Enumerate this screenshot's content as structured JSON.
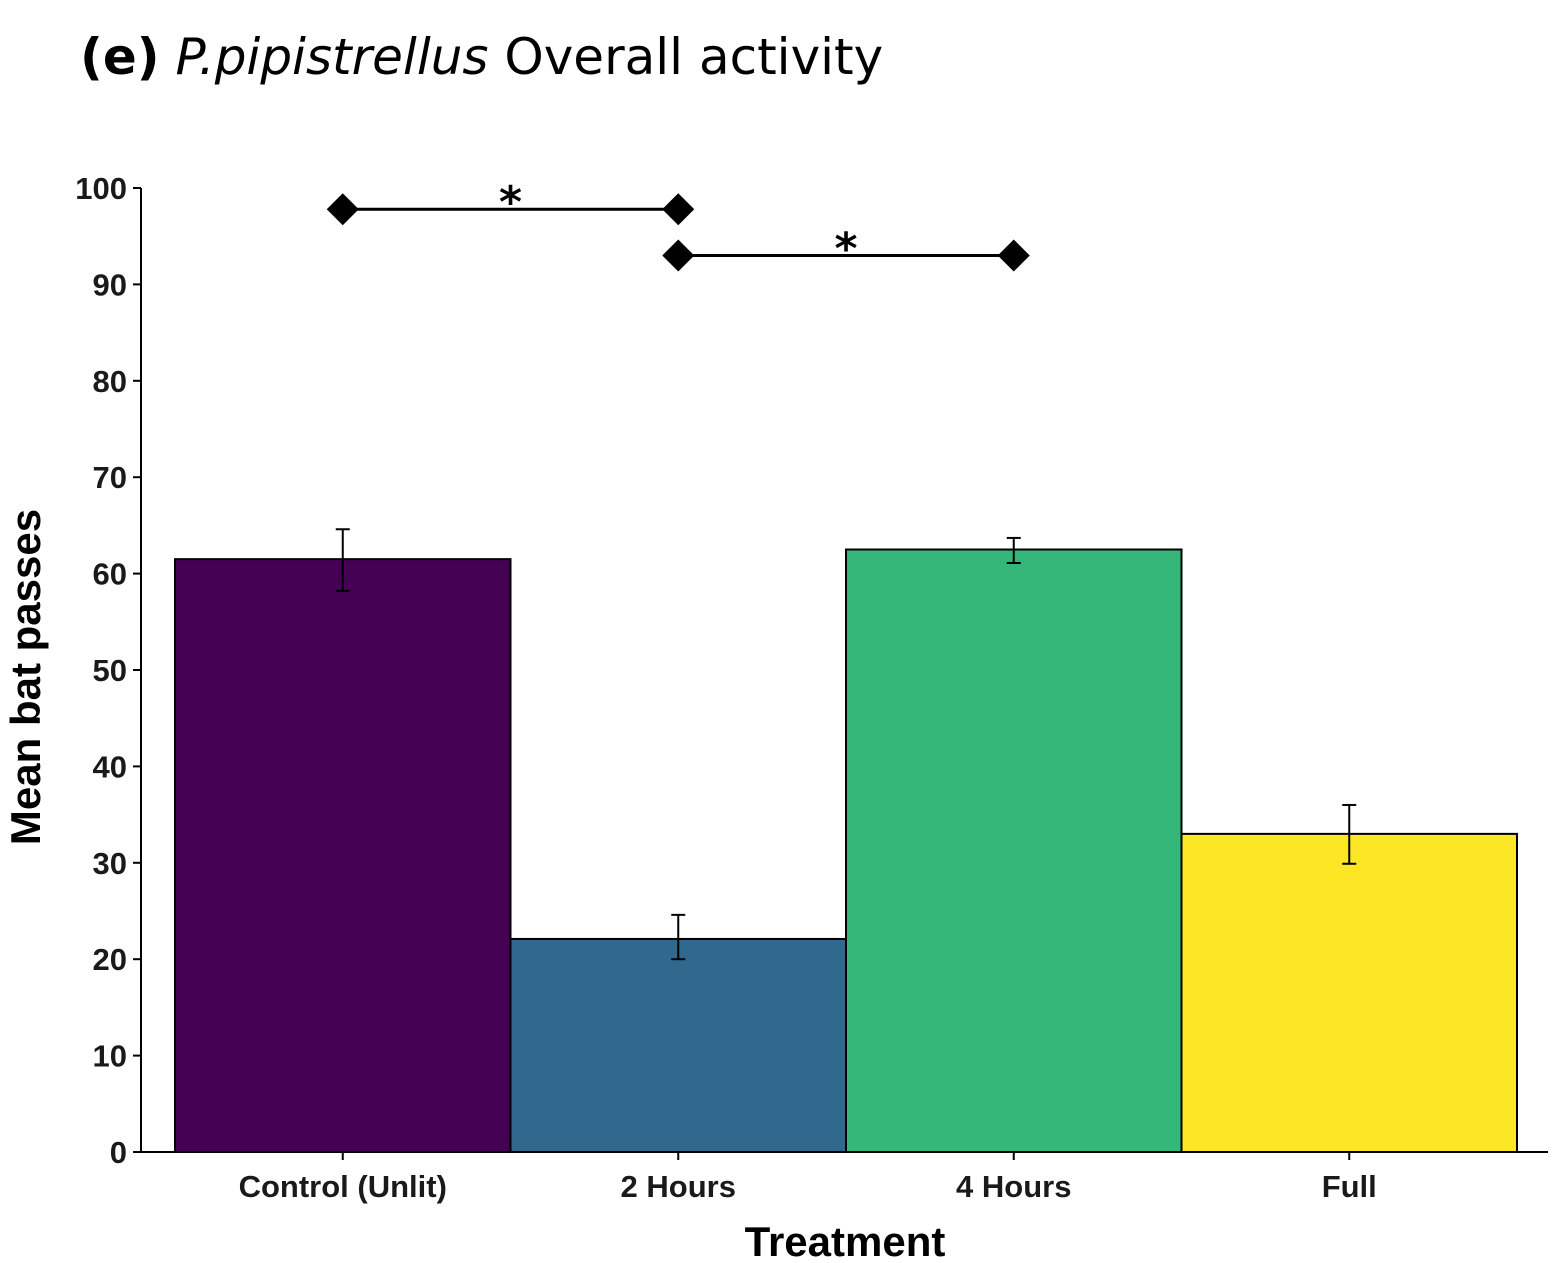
{
  "header": {
    "panel": "(e)",
    "species": "P.pipistrellus",
    "rest": "Overall activity"
  },
  "chart_data": {
    "type": "bar",
    "title": "(e) P.pipistrellus Overall activity",
    "xlabel": "Treatment",
    "ylabel": "Mean bat passes",
    "ylim": [
      0,
      100
    ],
    "yticks": [
      "0",
      "10",
      "20",
      "30",
      "40",
      "50",
      "60",
      "70",
      "80",
      "90",
      "100"
    ],
    "categories": [
      "Control (Unlit)",
      "2 Hours",
      "4 Hours",
      "Full"
    ],
    "values": [
      61.5,
      22.1,
      62.5,
      33.0
    ],
    "error_low": [
      58.2,
      20.0,
      61.1,
      29.9
    ],
    "error_high": [
      64.6,
      24.6,
      63.7,
      36.0
    ],
    "colors": [
      "#440154",
      "#31688e",
      "#35b779",
      "#fde725"
    ],
    "grid": false,
    "legend": "none",
    "significance": [
      {
        "from": "Control (Unlit)",
        "to": "2 Hours",
        "y": 97.8,
        "label": "*"
      },
      {
        "from": "2 Hours",
        "to": "4 Hours",
        "y": 93.0,
        "label": "*"
      }
    ]
  }
}
